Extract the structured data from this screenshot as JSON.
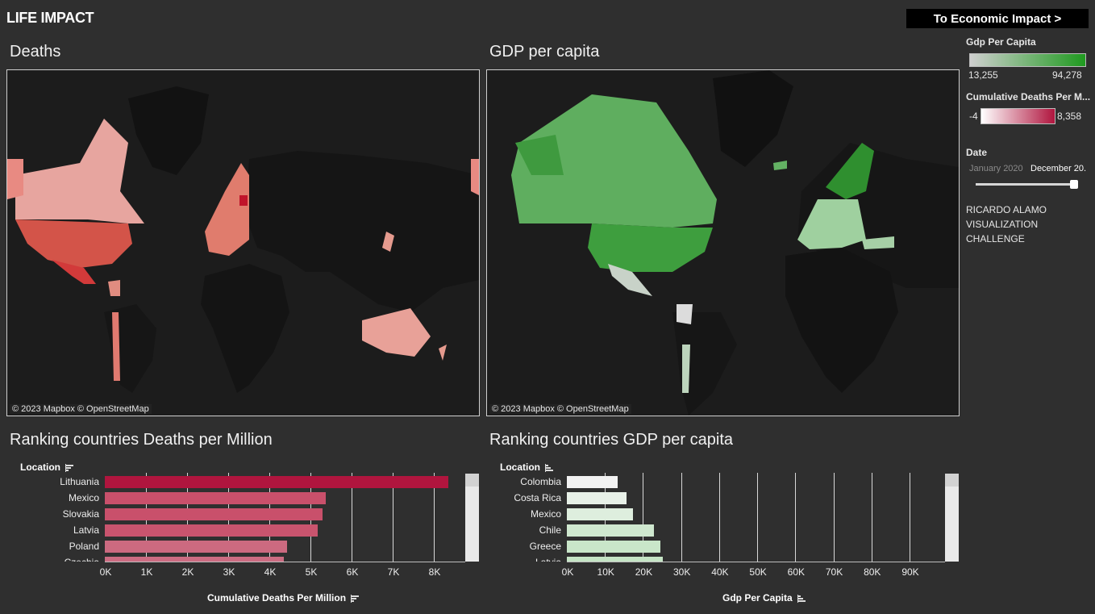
{
  "header": {
    "title": "LIFE IMPACT",
    "nav_button": "To Economic Impact >"
  },
  "maps": {
    "deaths_title": "Deaths",
    "gdp_title": "GDP per capita",
    "credit_mapbox": "© 2023 Mapbox",
    "credit_osm": "© OpenStreetMap"
  },
  "legends": {
    "gdp": {
      "title": "Gdp Per Capita",
      "min": "13,255",
      "max": "94,278",
      "color_low": "#cfcfcf",
      "color_high": "#1f9a1f"
    },
    "deaths": {
      "title": "Cumulative Deaths Per M...",
      "min": "-4",
      "max": "8,358",
      "color_low": "#ffffff",
      "color_high": "#b0153e"
    },
    "date": {
      "title": "Date",
      "start": "January 2020",
      "end": "December 20..."
    },
    "credit_lines": [
      "RICARDO ALAMO",
      "VISUALIZATION",
      "CHALLENGE"
    ]
  },
  "ranking_deaths": {
    "title": "Ranking countries Deaths per Million",
    "axis_head": "Location",
    "axis_title": "Cumulative Deaths Per Million",
    "ticks": [
      "0K",
      "1K",
      "2K",
      "3K",
      "4K",
      "5K",
      "6K",
      "7K",
      "8K"
    ]
  },
  "ranking_gdp": {
    "title": "Ranking countries GDP per capita",
    "axis_head": "Location",
    "axis_title": "Gdp Per Capita",
    "ticks": [
      "0K",
      "10K",
      "20K",
      "30K",
      "40K",
      "50K",
      "60K",
      "70K",
      "80K",
      "90K"
    ]
  },
  "chart_data": [
    {
      "type": "bar",
      "title": "Ranking countries Deaths per Million",
      "xlabel": "Cumulative Deaths Per Million",
      "ylabel": "Location",
      "xlim": [
        0,
        8800
      ],
      "categories": [
        "Lithuania",
        "Mexico",
        "Slovakia",
        "Latvia",
        "Poland",
        "Czechia"
      ],
      "values": [
        8358,
        5380,
        5300,
        5180,
        4430,
        4350
      ],
      "colors": [
        "#b0153e",
        "#c9506b",
        "#c9506b",
        "#c9546e",
        "#cc6a80",
        "#cc6c82"
      ]
    },
    {
      "type": "bar",
      "title": "Ranking countries GDP per capita",
      "xlabel": "Gdp Per Capita",
      "ylabel": "Location",
      "xlim": [
        0,
        98000
      ],
      "categories": [
        "Colombia",
        "Costa Rica",
        "Mexico",
        "Chile",
        "Greece",
        "Latvia"
      ],
      "values": [
        13255,
        15600,
        17300,
        22800,
        24600,
        25100
      ],
      "colors": [
        "#f2f2f2",
        "#e8f1e8",
        "#deeede",
        "#cfe8cf",
        "#c9e6c9",
        "#c5e4c5"
      ]
    }
  ]
}
